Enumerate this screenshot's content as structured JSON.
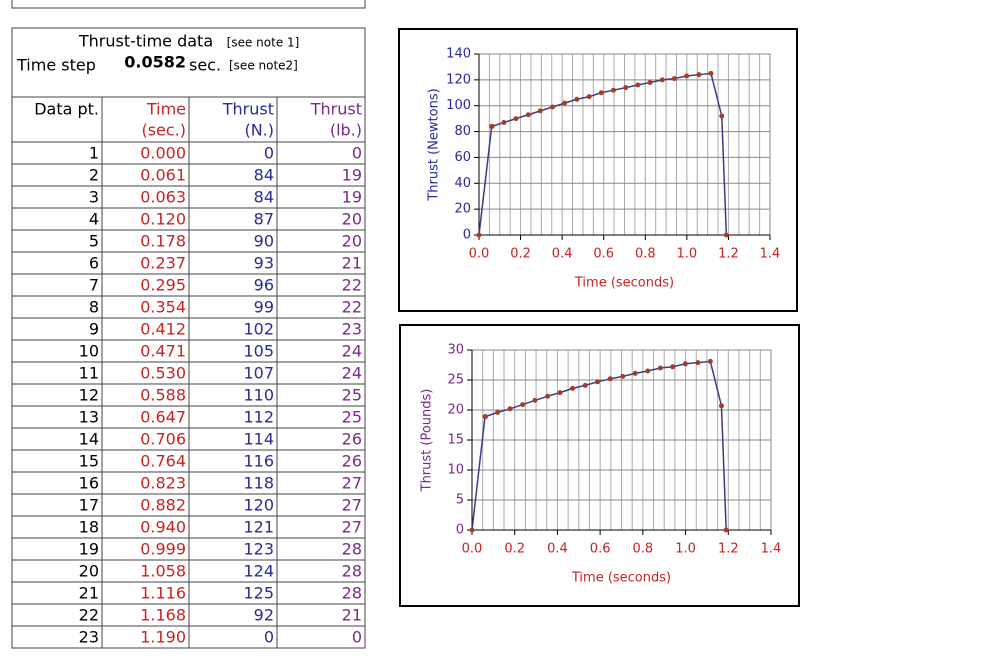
{
  "header": {
    "title": "Thrust-time data",
    "title_note": "[see note 1]",
    "time_step_label": "Time step",
    "time_step_value": "0.0582",
    "time_step_unit": "sec.",
    "time_step_note": "[see note2]"
  },
  "table": {
    "columns": [
      [
        "Data pt."
      ],
      [
        "Time",
        "(sec.)"
      ],
      [
        "Thrust",
        "(N.)"
      ],
      [
        "Thrust",
        "(lb.)"
      ]
    ],
    "rows": [
      [
        "1",
        "0.000",
        "0",
        "0"
      ],
      [
        "2",
        "0.061",
        "84",
        "19"
      ],
      [
        "3",
        "0.063",
        "84",
        "19"
      ],
      [
        "4",
        "0.120",
        "87",
        "20"
      ],
      [
        "5",
        "0.178",
        "90",
        "20"
      ],
      [
        "6",
        "0.237",
        "93",
        "21"
      ],
      [
        "7",
        "0.295",
        "96",
        "22"
      ],
      [
        "8",
        "0.354",
        "99",
        "22"
      ],
      [
        "9",
        "0.412",
        "102",
        "23"
      ],
      [
        "10",
        "0.471",
        "105",
        "24"
      ],
      [
        "11",
        "0.530",
        "107",
        "24"
      ],
      [
        "12",
        "0.588",
        "110",
        "25"
      ],
      [
        "13",
        "0.647",
        "112",
        "25"
      ],
      [
        "14",
        "0.706",
        "114",
        "26"
      ],
      [
        "15",
        "0.764",
        "116",
        "26"
      ],
      [
        "16",
        "0.823",
        "118",
        "27"
      ],
      [
        "17",
        "0.882",
        "120",
        "27"
      ],
      [
        "18",
        "0.940",
        "121",
        "27"
      ],
      [
        "19",
        "0.999",
        "123",
        "28"
      ],
      [
        "20",
        "1.058",
        "124",
        "28"
      ],
      [
        "21",
        "1.116",
        "125",
        "28"
      ],
      [
        "22",
        "1.168",
        "92",
        "21"
      ],
      [
        "23",
        "1.190",
        "0",
        "0"
      ]
    ]
  },
  "chart_data": [
    {
      "type": "line",
      "xlabel": "Time (seconds)",
      "ylabel": "Thrust (Newtons)",
      "x": [
        0,
        0.061,
        0.063,
        0.12,
        0.178,
        0.237,
        0.295,
        0.354,
        0.412,
        0.471,
        0.53,
        0.588,
        0.647,
        0.706,
        0.764,
        0.823,
        0.882,
        0.94,
        0.999,
        1.058,
        1.116,
        1.168,
        1.19
      ],
      "values": [
        0,
        84,
        84,
        87,
        90,
        93,
        96,
        99,
        102,
        105,
        107,
        110,
        112,
        114,
        116,
        118,
        120,
        121,
        123,
        124,
        125,
        92,
        0
      ],
      "color": "#3a3a8a",
      "marker_color": "#a0402a",
      "axis_color": "#2a2a9a",
      "xlim": [
        0,
        1.4
      ],
      "xticks": [
        {
          "value": 0,
          "label": "0.0"
        },
        0.2,
        0.4,
        0.6,
        0.8,
        {
          "value": 1,
          "label": "1.0"
        },
        1.2,
        1.4
      ],
      "ylim": [
        0,
        140
      ],
      "yticks": [
        0,
        20,
        40,
        60,
        80,
        100,
        120,
        140
      ],
      "grid": true,
      "minor_grid_step": 0.05
    },
    {
      "type": "line",
      "xlabel": "Time (seconds)",
      "ylabel": "Thrust (Pounds)",
      "x": [
        0,
        0.061,
        0.063,
        0.12,
        0.178,
        0.237,
        0.295,
        0.354,
        0.412,
        0.471,
        0.53,
        0.588,
        0.647,
        0.706,
        0.764,
        0.823,
        0.882,
        0.94,
        0.999,
        1.058,
        1.116,
        1.168,
        1.19
      ],
      "values": [
        0,
        18.9,
        18.9,
        19.6,
        20.2,
        20.9,
        21.6,
        22.3,
        22.9,
        23.6,
        24.1,
        24.7,
        25.2,
        25.6,
        26.1,
        26.5,
        27.0,
        27.2,
        27.7,
        27.9,
        28.1,
        20.7,
        0
      ],
      "color": "#3a3a8a",
      "marker_color": "#a0402a",
      "axis_color": "#7a2a8a",
      "xlim": [
        0,
        1.4
      ],
      "xticks": [
        {
          "value": 0,
          "label": "0.0"
        },
        0.2,
        0.4,
        0.6,
        0.8,
        {
          "value": 1,
          "label": "1.0"
        },
        1.2,
        1.4
      ],
      "ylim": [
        0,
        30
      ],
      "yticks": [
        0,
        5,
        10,
        15,
        20,
        25,
        30
      ],
      "grid": true,
      "minor_grid_step": 0.05
    }
  ]
}
